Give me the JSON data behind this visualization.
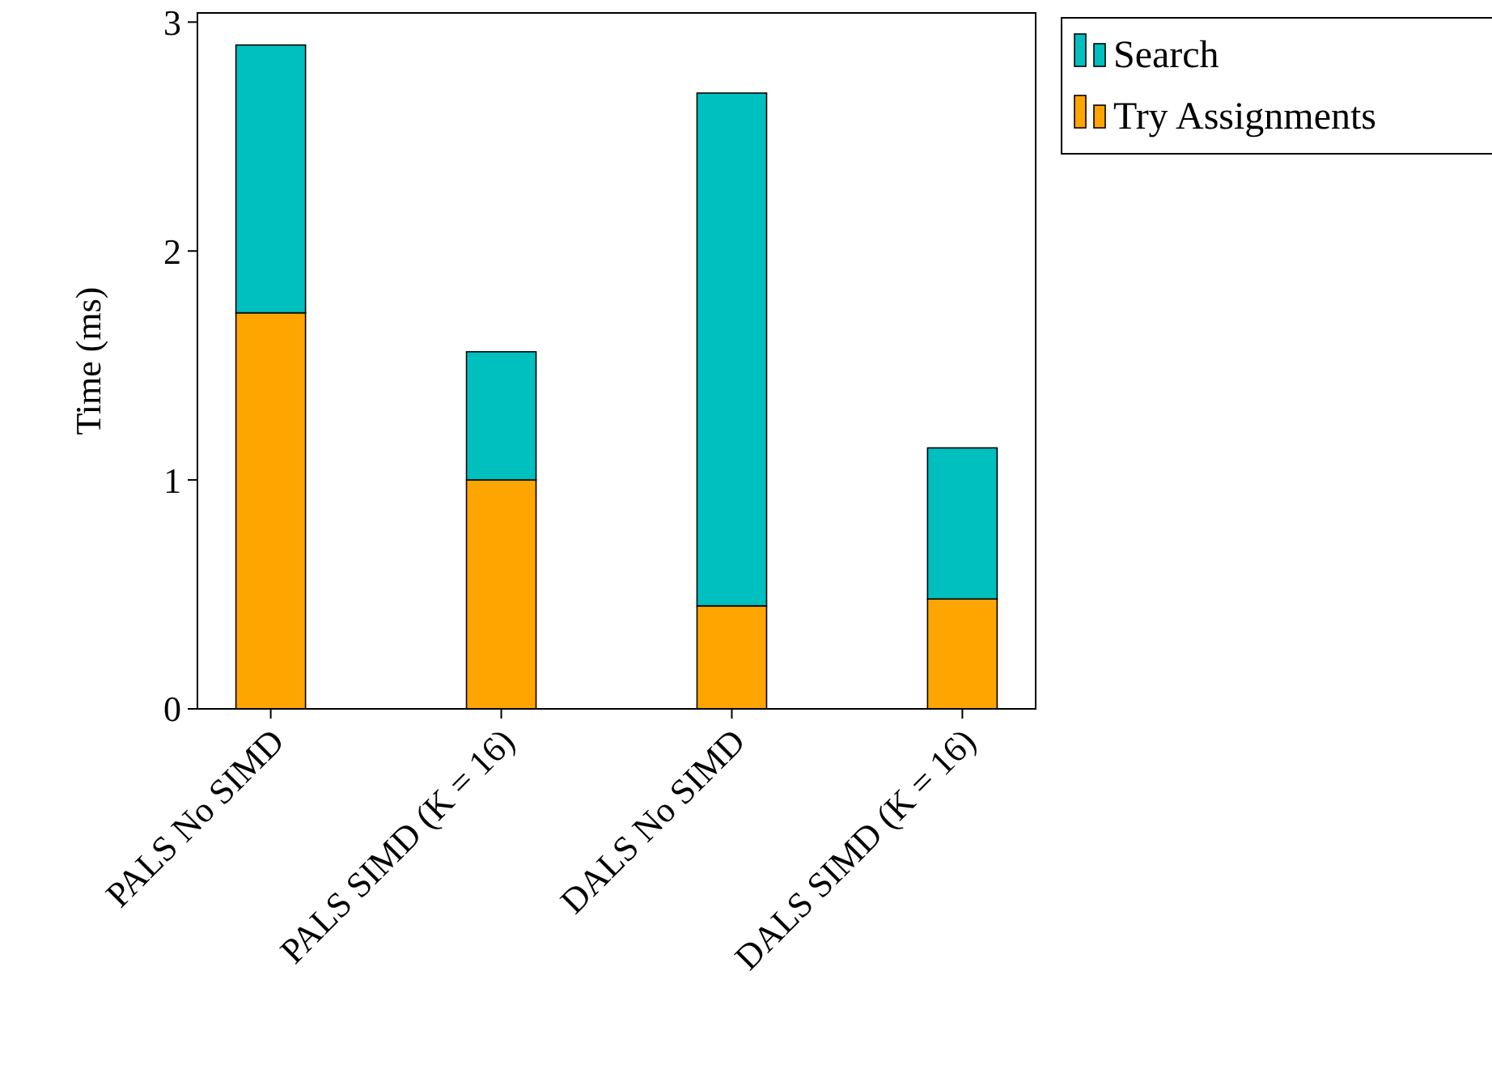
{
  "chart_data": {
    "type": "bar",
    "stacked": true,
    "ylabel": "Time (ms)",
    "categories": [
      "PALS No SIMD",
      "PALS SIMD (K = 16)",
      "DALS No SIMD",
      "DALS SIMD (K = 16)"
    ],
    "series": [
      {
        "name": "Try Assignments",
        "color": "#ffa500",
        "values": [
          1.73,
          1.0,
          0.45,
          0.48
        ]
      },
      {
        "name": "Search",
        "color": "#00bfbf",
        "values": [
          1.17,
          0.56,
          2.24,
          0.66
        ]
      }
    ],
    "ylim": [
      0,
      3.04
    ],
    "yticks": [
      0,
      1,
      2,
      3
    ],
    "grid": false,
    "legend": "top right"
  }
}
